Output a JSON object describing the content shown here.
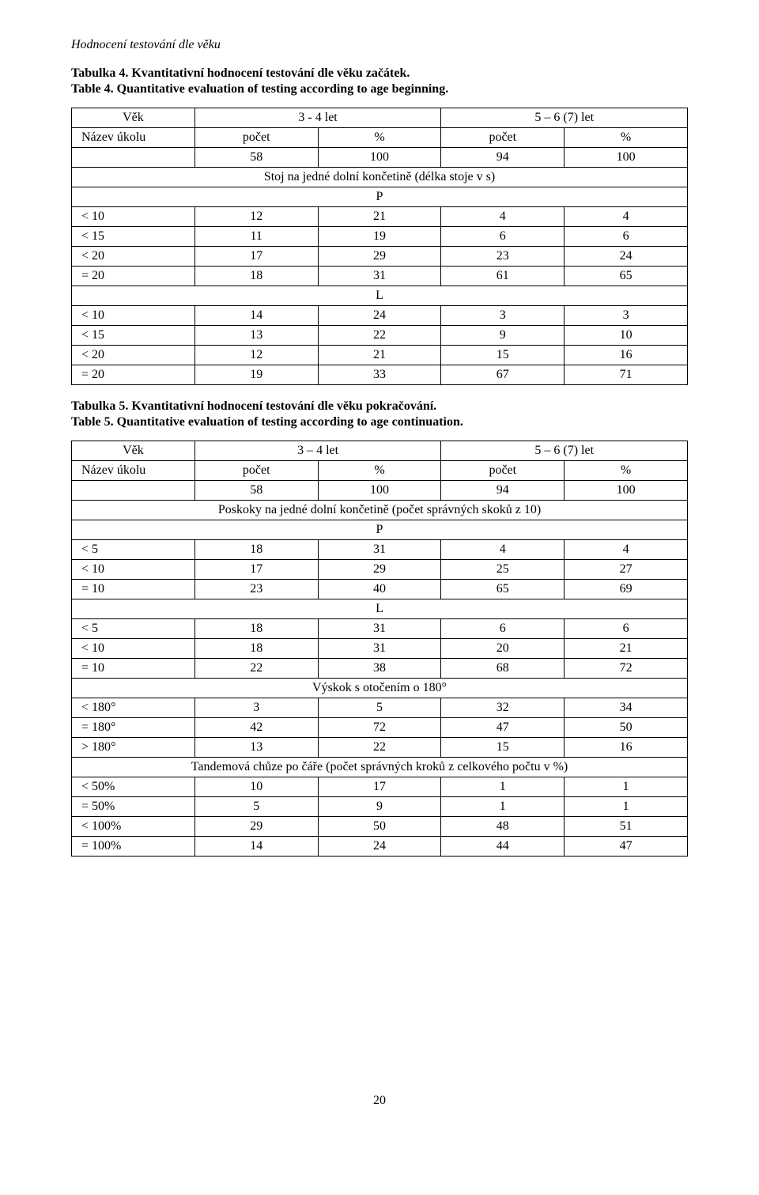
{
  "section_heading": "Hodnocení testování dle věku",
  "table4": {
    "caption_cz": "Tabulka 4. Kvantitativní hodnocení testování dle věku začátek.",
    "caption_en": "Table 4. Quantitative evaluation of testing according to age beginning.",
    "header": {
      "col0": "Věk",
      "col12": "3 - 4 let",
      "col34": "5 – 6 (7) let"
    },
    "subheader": {
      "col0": "Název úkolu",
      "col1": "počet",
      "col2": "%",
      "col3": "počet",
      "col4": "%"
    },
    "totals": {
      "c1": "58",
      "c2": "100",
      "c3": "94",
      "c4": "100"
    },
    "section1": "Stoj na jedné dolní končetině (délka stoje v s)",
    "P": "P",
    "L": "L",
    "p_rows": [
      {
        "c0": "< 10",
        "c1": "12",
        "c2": "21",
        "c3": "4",
        "c4": "4"
      },
      {
        "c0": "< 15",
        "c1": "11",
        "c2": "19",
        "c3": "6",
        "c4": "6"
      },
      {
        "c0": "< 20",
        "c1": "17",
        "c2": "29",
        "c3": "23",
        "c4": "24"
      },
      {
        "c0": "= 20",
        "c1": "18",
        "c2": "31",
        "c3": "61",
        "c4": "65"
      }
    ],
    "l_rows": [
      {
        "c0": "< 10",
        "c1": "14",
        "c2": "24",
        "c3": "3",
        "c4": "3"
      },
      {
        "c0": "< 15",
        "c1": "13",
        "c2": "22",
        "c3": "9",
        "c4": "10"
      },
      {
        "c0": "< 20",
        "c1": "12",
        "c2": "21",
        "c3": "15",
        "c4": "16"
      },
      {
        "c0": "= 20",
        "c1": "19",
        "c2": "33",
        "c3": "67",
        "c4": "71"
      }
    ]
  },
  "table5": {
    "caption_cz": "Tabulka 5. Kvantitativní hodnocení testování dle věku pokračování.",
    "caption_en": "Table 5. Quantitative evaluation of testing according to age continuation.",
    "header": {
      "col0": "Věk",
      "col12": "3 – 4 let",
      "col34": "5 – 6 (7) let"
    },
    "subheader": {
      "col0": "Název úkolu",
      "col1": "počet",
      "col2": "%",
      "col3": "počet",
      "col4": "%"
    },
    "totals": {
      "c1": "58",
      "c2": "100",
      "c3": "94",
      "c4": "100"
    },
    "section1": "Poskoky na jedné dolní končetině (počet správných skoků z 10)",
    "P": "P",
    "L": "L",
    "p_rows": [
      {
        "c0": "< 5",
        "c1": "18",
        "c2": "31",
        "c3": "4",
        "c4": "4"
      },
      {
        "c0": "< 10",
        "c1": "17",
        "c2": "29",
        "c3": "25",
        "c4": "27"
      },
      {
        "c0": "= 10",
        "c1": "23",
        "c2": "40",
        "c3": "65",
        "c4": "69"
      }
    ],
    "l_rows": [
      {
        "c0": "< 5",
        "c1": "18",
        "c2": "31",
        "c3": "6",
        "c4": "6"
      },
      {
        "c0": "< 10",
        "c1": "18",
        "c2": "31",
        "c3": "20",
        "c4": "21"
      },
      {
        "c0": "= 10",
        "c1": "22",
        "c2": "38",
        "c3": "68",
        "c4": "72"
      }
    ],
    "section2": "Výskok s otočením o 180°",
    "sec2_rows": [
      {
        "c0": "< 180°",
        "c1": "3",
        "c2": "5",
        "c3": "32",
        "c4": "34"
      },
      {
        "c0": "= 180°",
        "c1": "42",
        "c2": "72",
        "c3": "47",
        "c4": "50"
      },
      {
        "c0": "> 180°",
        "c1": "13",
        "c2": "22",
        "c3": "15",
        "c4": "16"
      }
    ],
    "section3": "Tandemová chůze po čáře (počet správných kroků z celkového počtu v %)",
    "sec3_rows": [
      {
        "c0": "< 50%",
        "c1": "10",
        "c2": "17",
        "c3": "1",
        "c4": "1"
      },
      {
        "c0": "= 50%",
        "c1": "5",
        "c2": "9",
        "c3": "1",
        "c4": "1"
      },
      {
        "c0": "< 100%",
        "c1": "29",
        "c2": "50",
        "c3": "48",
        "c4": "51"
      },
      {
        "c0": "= 100%",
        "c1": "14",
        "c2": "24",
        "c3": "44",
        "c4": "47"
      }
    ]
  },
  "page_number": "20"
}
